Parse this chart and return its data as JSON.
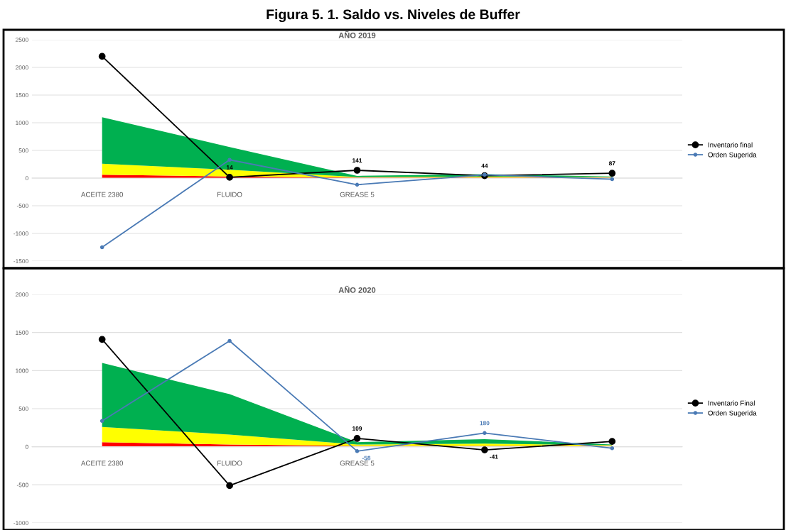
{
  "chart_data": [
    {
      "type": "area",
      "title": "Figura 5. 1. Saldo vs. Niveles de Buffer",
      "subtitle": "AÑO 2019",
      "stacked": true,
      "categories": [
        "ACEITE 2380",
        "FLUIDO",
        "GREASE 5",
        null,
        null
      ],
      "series": [
        {
          "color": "#ff0000",
          "values": [
            60,
            30,
            10,
            10,
            10
          ]
        },
        {
          "color": "#ffff00",
          "values": [
            200,
            120,
            10,
            20,
            10
          ]
        },
        {
          "color": "#00b050",
          "values": [
            840,
            410,
            20,
            40,
            10
          ]
        },
        {
          "type": "line",
          "name": "Inventario final",
          "color": "#000000",
          "marker": "circle",
          "values": [
            2200,
            14,
            141,
            44,
            87
          ],
          "value_labels": [
            null,
            "14",
            "141",
            "44",
            "87"
          ]
        },
        {
          "type": "line",
          "name": "Orden Sugerida",
          "color": "#4a7ab5",
          "marker": "circle",
          "values": [
            -1250,
            330,
            -120,
            60,
            -20
          ]
        }
      ],
      "ylim": [
        -1500,
        2500
      ],
      "yticks": [
        -1500,
        -1000,
        -500,
        0,
        500,
        1000,
        1500,
        2000,
        2500
      ],
      "grid": "y",
      "legend": "right",
      "line_style": "solid"
    },
    {
      "type": "area",
      "title": "AÑO 2020",
      "stacked": true,
      "categories": [
        "ACEITE 2380",
        "FLUIDO",
        "GREASE 5",
        null,
        null
      ],
      "series": [
        {
          "color": "#ff0000",
          "values": [
            60,
            30,
            10,
            10,
            10
          ]
        },
        {
          "color": "#ffff00",
          "values": [
            200,
            130,
            20,
            30,
            10
          ]
        },
        {
          "color": "#00b050",
          "values": [
            840,
            530,
            30,
            60,
            10
          ]
        },
        {
          "type": "line",
          "name": "Inventario Final",
          "color": "#000000",
          "marker": "circle",
          "values": [
            1410,
            -510,
            109,
            -41,
            70
          ],
          "value_labels": [
            null,
            null,
            "109",
            "-41",
            null
          ]
        },
        {
          "type": "line",
          "name": "Orden Sugerida",
          "color": "#4a7ab5",
          "marker": "circle",
          "values": [
            340,
            1390,
            -58,
            180,
            -20
          ],
          "value_labels": [
            null,
            null,
            "-58",
            "180",
            null
          ]
        }
      ],
      "ylim": [
        -1000,
        2000
      ],
      "yticks": [
        -1000,
        -500,
        0,
        500,
        1000,
        1500,
        2000
      ],
      "grid": "y",
      "legend": "right",
      "line_style": "solid"
    }
  ]
}
